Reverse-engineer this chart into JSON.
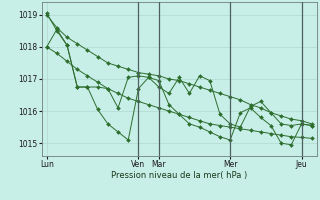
{
  "title": "",
  "xlabel": "Pression niveau de la mer( hPa )",
  "ylabel": "",
  "bg_color": "#c8eee8",
  "grid_color": "#b0d8d0",
  "line_color": "#2d6e2d",
  "ylim": [
    1014.6,
    1019.4
  ],
  "yticks": [
    1015,
    1016,
    1017,
    1018,
    1019
  ],
  "xtick_labels": [
    "Lun",
    "Ven",
    "Mar",
    "Mer",
    "Jeu"
  ],
  "xtick_positions": [
    0,
    9,
    11,
    18,
    25
  ],
  "vline_positions": [
    9,
    11,
    18,
    25
  ],
  "n_points": 27,
  "series": [
    [
      1019.0,
      1018.6,
      1018.3,
      1018.1,
      1017.9,
      1017.7,
      1017.5,
      1017.4,
      1017.3,
      1017.2,
      1017.15,
      1017.1,
      1017.0,
      1016.95,
      1016.85,
      1016.75,
      1016.65,
      1016.55,
      1016.45,
      1016.35,
      1016.2,
      1016.1,
      1015.95,
      1015.85,
      1015.75,
      1015.7,
      1015.6
    ],
    [
      1018.0,
      1017.8,
      1017.55,
      1017.3,
      1017.1,
      1016.9,
      1016.7,
      1016.55,
      1016.4,
      1016.3,
      1016.2,
      1016.1,
      1016.0,
      1015.9,
      1015.8,
      1015.7,
      1015.6,
      1015.55,
      1015.5,
      1015.45,
      1015.4,
      1015.35,
      1015.3,
      1015.25,
      1015.2,
      1015.18,
      1015.15
    ],
    [
      1018.0,
      1018.55,
      1018.05,
      1016.75,
      1016.75,
      1016.05,
      1015.6,
      1015.35,
      1015.1,
      1016.7,
      1017.05,
      1016.75,
      1016.55,
      1017.05,
      1016.55,
      1017.1,
      1016.95,
      1015.9,
      1015.6,
      1015.5,
      1016.15,
      1016.3,
      1015.95,
      1015.6,
      1015.55,
      1015.6,
      1015.55
    ],
    [
      1019.05,
      1018.5,
      1018.05,
      1016.75,
      1016.75,
      1016.75,
      1016.7,
      1016.1,
      1017.05,
      1017.1,
      1017.05,
      1016.95,
      1016.2,
      1015.9,
      1015.6,
      1015.5,
      1015.35,
      1015.2,
      1015.1,
      1015.95,
      1016.1,
      1015.8,
      1015.55,
      1015.0,
      1014.95,
      1015.6,
      1015.55
    ]
  ]
}
